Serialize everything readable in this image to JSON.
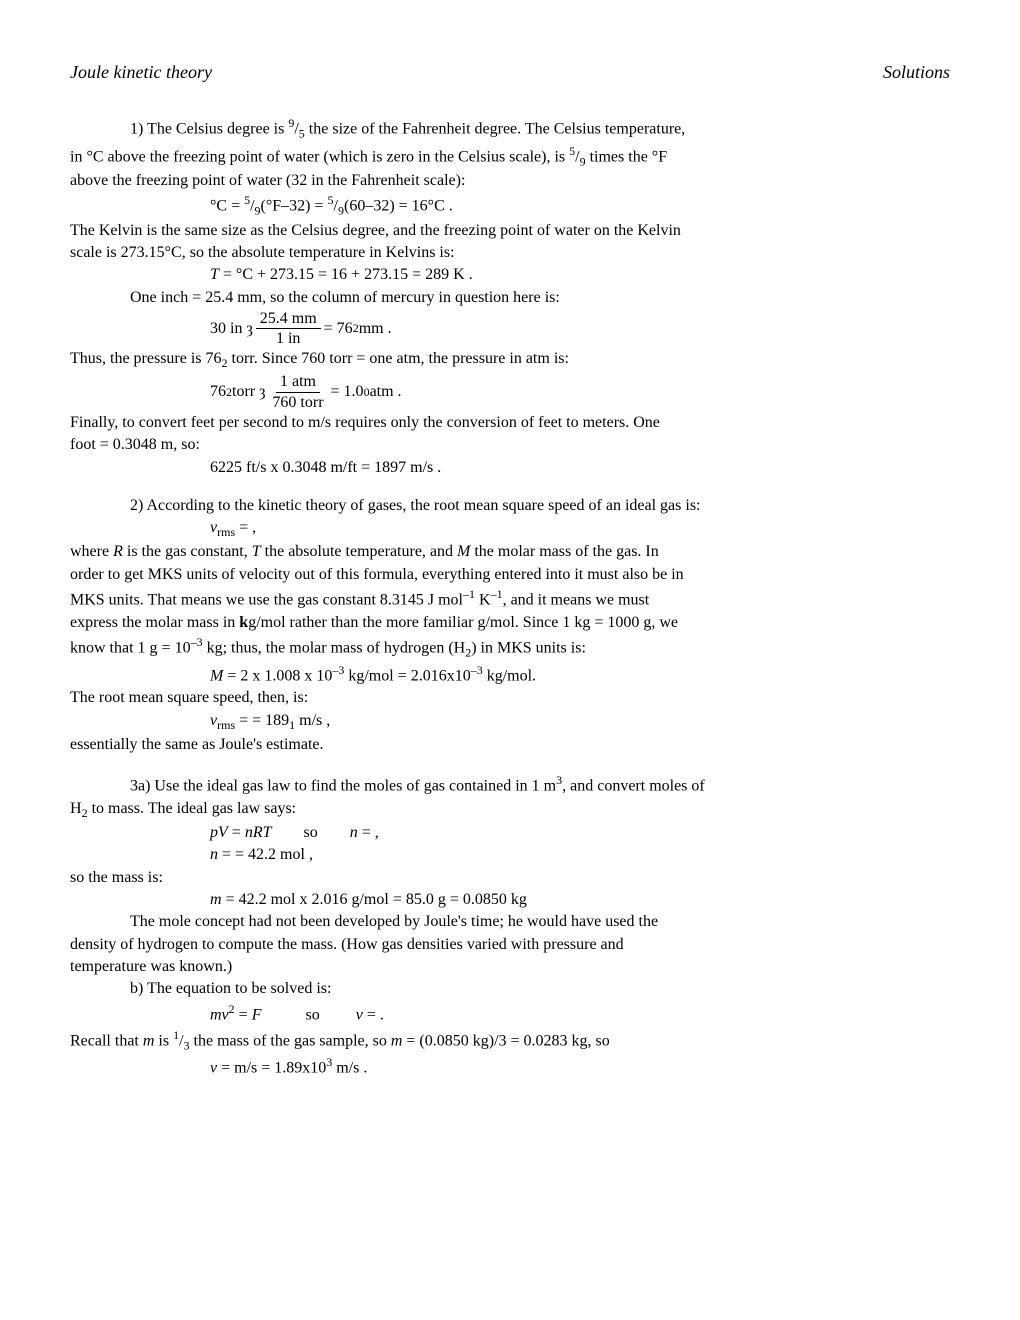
{
  "header": {
    "left": "Joule kinetic theory",
    "right": "Solutions"
  },
  "p1": {
    "line1_a": "1) The Celsius degree is ",
    "line1_b": "9",
    "line1_c": "/",
    "line1_d": "5",
    "line1_e": " the size of the Fahrenheit degree.  The Celsius temperature,",
    "line2_a": "in °C above the freezing point of water (which is zero in the Celsius scale), is ",
    "line2_b": "5",
    "line2_c": "/",
    "line2_d": "9",
    "line2_e": " times the °F",
    "line3": "above the freezing point of water (32 in the Fahrenheit scale):",
    "formula1_a": "°C = ",
    "formula1_b": "5",
    "formula1_c": "/",
    "formula1_d": "9",
    "formula1_e": "(°F–32) = ",
    "formula1_f": "5",
    "formula1_g": "/",
    "formula1_h": "9",
    "formula1_i": "(60–32) = 16°C .",
    "line4": "The Kelvin is the same size as the Celsius degree, and the freezing point of water on the Kelvin",
    "line5": "scale is 273.15°C, so the absolute temperature in Kelvins is:",
    "formula2_a": "T",
    "formula2_b": " = °C + 273.15 = 16 + 273.15 = 289 K .",
    "line6": "One inch = 25.4 mm, so the column of mercury in question here is:",
    "formula3_a": "30 in ȝ ",
    "formula3_num": "25.4 mm",
    "formula3_den": "1 in",
    "formula3_b": " = 76",
    "formula3_c": "2",
    "formula3_d": " mm .",
    "line7_a": "Thus, the pressure is 76",
    "line7_b": "2",
    "line7_c": " torr.  Since 760 torr = one atm, the pressure in atm is:",
    "formula4_a": "76",
    "formula4_b": "2",
    "formula4_c": " torr ȝ ",
    "formula4_num": "1 atm",
    "formula4_den": "760 torr",
    "formula4_d": " = 1.0",
    "formula4_e": "0",
    "formula4_f": " atm .",
    "line8": "Finally, to convert feet per second to m/s requires only the conversion of feet to meters.  One",
    "line9": "foot = 0.3048 m, so:",
    "formula5": " 6225 ft/s x 0.3048 m/ft = 1897 m/s ."
  },
  "p2": {
    "line1": "2) According to the kinetic theory of gases, the root mean square speed of an ideal gas is:",
    "formula1_a": "v",
    "formula1_b": "rms",
    "formula1_c": " =  ,",
    "line2_a": "where ",
    "line2_b": "R",
    "line2_c": " is the gas constant, ",
    "line2_d": "T",
    "line2_e": " the absolute temperature, and ",
    "line2_f": "M",
    "line2_g": " the molar mass of the gas.  In",
    "line3": "order to get MKS units of velocity out of this formula, everything entered into it must also be in",
    "line4_a": "MKS units.  That means we use the gas constant 8.3145 J mol",
    "line4_b": "–1",
    "line4_c": " K",
    "line4_d": "–1",
    "line4_e": ", and it means we must",
    "line5_a": "express the molar mass in ",
    "line5_b": "k",
    "line5_c": "g/mol rather than the more familiar g/mol.  Since 1 kg = 1000 g, we",
    "line6_a": "know that 1 g = 10",
    "line6_b": "–3",
    "line6_c": " kg; thus, the molar mass of hydrogen (H",
    "line6_d": "2",
    "line6_e": ") in MKS units is:",
    "formula2_a": "M",
    "formula2_b": " = 2 x 1.008 x 10",
    "formula2_c": "–3",
    "formula2_d": " kg/mol = 2.016x10",
    "formula2_e": "–3",
    "formula2_f": " kg/mol.",
    "line7": "The root mean square speed, then, is:",
    "formula3_a": "v",
    "formula3_b": "rms",
    "formula3_c": " =  = 189",
    "formula3_d": "1",
    "formula3_e": " m/s ,",
    "line8": "essentially the same as Joule's estimate."
  },
  "p3": {
    "line1_a": "3a) Use the ideal gas law to find the moles of gas contained in 1 m",
    "line1_b": "3",
    "line1_c": ", and convert moles of",
    "line2_a": "H",
    "line2_b": "2",
    "line2_c": " to mass.  The ideal gas law says:",
    "formula1_a": "pV",
    "formula1_b": " = ",
    "formula1_c": "nRT",
    "formula1_sp": "        so        ",
    "formula1_d": "n",
    "formula1_e": " =  ,",
    "formula2_a": "n",
    "formula2_b": " =  = 42.2 mol ,",
    "line3": "so the mass is:",
    "formula3_a": "m",
    "formula3_b": " = 42.2 mol x 2.016 g/mol = 85.0 g = 0.0850 kg",
    "line4": "The mole concept had not been developed by Joule's time; he would have used the",
    "line5": "density of hydrogen to compute the mass.  (How gas densities varied with pressure and",
    "line6": "temperature was known.)",
    "line7": "b) The equation to be solved is:",
    "formula4_a": "mv",
    "formula4_b": "2",
    "formula4_c": " = ",
    "formula4_d": "F",
    "formula4_sp": "           so         ",
    "formula4_e": "v",
    "formula4_f": " =  .",
    "line8_a": "Recall that ",
    "line8_b": "m",
    "line8_c": " is ",
    "line8_d": "1",
    "line8_e": "/",
    "line8_f": "3",
    "line8_g": " the mass of the gas sample, so ",
    "line8_h": "m",
    "line8_i": " = (0.0850 kg)/3 = 0.0283 kg, so",
    "formula5_a": "v",
    "formula5_b": " =  m/s = 1.89x10",
    "formula5_c": "3",
    "formula5_d": " m/s ."
  }
}
